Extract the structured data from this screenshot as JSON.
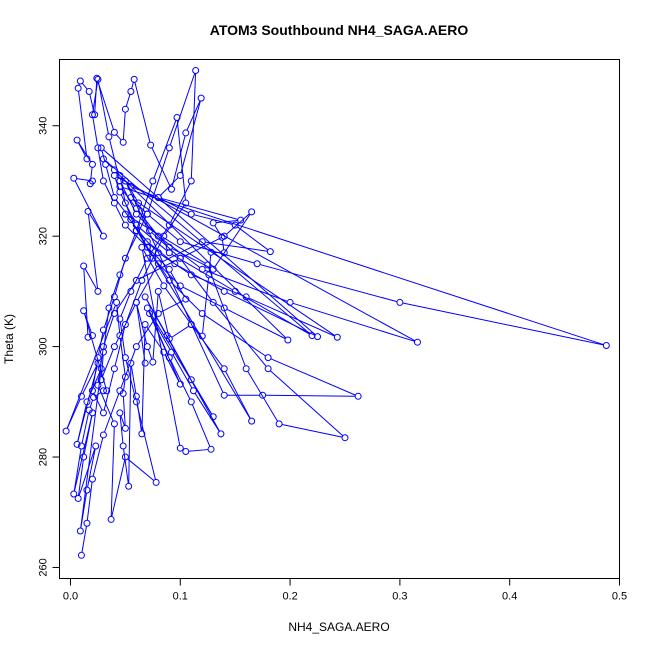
{
  "chart_data": {
    "type": "line",
    "title": "ATOM3 Southbound NH4_SAGA.AERO",
    "xlabel": "NH4_SAGA.AERO",
    "ylabel": "Theta (K)",
    "xlim": [
      -0.01,
      0.5
    ],
    "ylim": [
      258,
      352
    ],
    "xticks": [
      0.0,
      0.1,
      0.2,
      0.3,
      0.4,
      0.5
    ],
    "xtick_labels": [
      "0.0",
      "0.1",
      "0.2",
      "0.3",
      "0.4",
      "0.5"
    ],
    "yticks": [
      260,
      280,
      300,
      320,
      340
    ],
    "ytick_labels": [
      "260",
      "280",
      "300",
      "320",
      "340"
    ],
    "grid": false,
    "legend": "none",
    "color": "#0000ff",
    "markers": "open-circle",
    "series": [
      {
        "points": [
          [
            0.01,
            262.2
          ],
          [
            0.015,
            268.0
          ],
          [
            0.02,
            276.0
          ],
          [
            0.03,
            284.0
          ],
          [
            0.045,
            292.0
          ],
          [
            0.06,
            300.0
          ],
          [
            0.08,
            306.0
          ],
          [
            0.105,
            308.6
          ],
          [
            0.09,
            314.0
          ],
          [
            0.07,
            318.0
          ],
          [
            0.05,
            322.0
          ],
          [
            0.04,
            326.0
          ],
          [
            0.03,
            330.0
          ],
          [
            0.025,
            336.0
          ],
          [
            0.02,
            342.0
          ],
          [
            0.025,
            348.4
          ],
          [
            0.035,
            338.0
          ],
          [
            0.045,
            330.0
          ],
          [
            0.06,
            324.0
          ],
          [
            0.09,
            318.0
          ],
          [
            0.13,
            314.0
          ],
          [
            0.165,
            324.4
          ],
          [
            0.14,
            320.0
          ],
          [
            0.1,
            316.0
          ],
          [
            0.06,
            312.0
          ],
          [
            0.04,
            306.0
          ],
          [
            0.03,
            300.0
          ],
          [
            0.025,
            293.0
          ],
          [
            0.04,
            286.0
          ],
          [
            0.037,
            268.7
          ],
          [
            0.05,
            280.0
          ],
          [
            0.078,
            275.4
          ],
          [
            0.06,
            290.0
          ],
          [
            0.05,
            298.0
          ],
          [
            0.045,
            305.0
          ],
          [
            0.055,
            310.0
          ],
          [
            0.07,
            316.0
          ],
          [
            0.09,
            322.0
          ],
          [
            0.11,
            330.0
          ],
          [
            0.114,
            350.0
          ],
          [
            0.09,
            336.0
          ],
          [
            0.07,
            324.0
          ],
          [
            0.05,
            316.0
          ],
          [
            0.04,
            309.0
          ],
          [
            0.03,
            303.0
          ],
          [
            0.025,
            298.0
          ],
          [
            0.02,
            292.0
          ],
          [
            0.03,
            288.0
          ],
          [
            0.04,
            296.0
          ],
          [
            0.05,
            304.0
          ],
          [
            0.065,
            312.0
          ],
          [
            0.085,
            320.0
          ],
          [
            0.105,
            326.0
          ],
          [
            0.097,
            341.5
          ],
          [
            0.075,
            330.0
          ],
          [
            0.06,
            321.0
          ],
          [
            0.045,
            313.0
          ],
          [
            0.035,
            307.0
          ],
          [
            0.03,
            299.0
          ],
          [
            0.028,
            294.0
          ],
          [
            0.04,
            300.0
          ],
          [
            0.06,
            308.0
          ],
          [
            0.08,
            315.0
          ],
          [
            0.12,
            319.0
          ],
          [
            0.182,
            317.2
          ],
          [
            0.15,
            322.0
          ],
          [
            0.11,
            324.0
          ],
          [
            0.08,
            327.0
          ],
          [
            0.055,
            329.0
          ],
          [
            0.04,
            332.0
          ],
          [
            0.03,
            334.0
          ],
          [
            0.22,
            302.0
          ],
          [
            0.15,
            310.0
          ],
          [
            0.09,
            317.0
          ],
          [
            0.06,
            322.0
          ],
          [
            0.045,
            328.0
          ],
          [
            0.04,
            331.0
          ],
          [
            0.316,
            300.8
          ],
          [
            0.2,
            308.0
          ],
          [
            0.12,
            314.0
          ],
          [
            0.08,
            320.0
          ],
          [
            0.06,
            325.0
          ],
          [
            0.045,
            329.0
          ],
          [
            0.488,
            300.2
          ],
          [
            0.3,
            308.0
          ],
          [
            0.17,
            315.0
          ],
          [
            0.1,
            319.0
          ],
          [
            0.07,
            324.0
          ],
          [
            0.055,
            327.0
          ],
          [
            0.243,
            301.7
          ],
          [
            0.16,
            309.0
          ],
          [
            0.11,
            313.0
          ],
          [
            0.08,
            317.0
          ],
          [
            0.06,
            321.0
          ],
          [
            0.05,
            326.0
          ],
          [
            0.045,
            331.0
          ],
          [
            0.198,
            301.2
          ],
          [
            0.14,
            307.0
          ],
          [
            0.1,
            311.0
          ],
          [
            0.075,
            316.0
          ],
          [
            0.055,
            323.0
          ],
          [
            0.04,
            327.0
          ],
          [
            0.032,
            333.0
          ],
          [
            0.028,
            336.0
          ],
          [
            0.225,
            301.8
          ],
          [
            0.14,
            310.0
          ],
          [
            0.095,
            315.0
          ],
          [
            0.07,
            319.0
          ],
          [
            0.05,
            324.0
          ],
          [
            0.125,
            314.8
          ],
          [
            0.16,
            296.0
          ],
          [
            0.19,
            286.0
          ],
          [
            0.25,
            283.5
          ],
          [
            0.18,
            296.0
          ],
          [
            0.13,
            308.0
          ],
          [
            0.1,
            316.0
          ],
          [
            0.072,
            321.0
          ],
          [
            0.062,
            326.0
          ],
          [
            0.05,
            330.0
          ],
          [
            0.14,
            291.2
          ],
          [
            0.175,
            291.2
          ],
          [
            0.262,
            291.0
          ],
          [
            0.18,
            298.0
          ],
          [
            0.12,
            306.0
          ],
          [
            0.09,
            312.0
          ],
          [
            0.07,
            318.0
          ],
          [
            0.055,
            323.0
          ],
          [
            0.165,
            286.5
          ],
          [
            0.14,
            296.0
          ],
          [
            0.11,
            304.0
          ],
          [
            0.085,
            311.0
          ],
          [
            0.065,
            318.0
          ],
          [
            0.1,
            281.6
          ],
          [
            0.105,
            281.0
          ],
          [
            0.128,
            281.4
          ],
          [
            0.11,
            290.0
          ],
          [
            0.09,
            298.0
          ],
          [
            0.07,
            307.0
          ],
          [
            0.13,
            287.3
          ],
          [
            0.11,
            294.0
          ],
          [
            0.088,
            302.0
          ],
          [
            0.068,
            309.0
          ],
          [
            0.137,
            284.2
          ],
          [
            0.112,
            292.0
          ],
          [
            0.092,
            299.0
          ],
          [
            0.072,
            306.0
          ],
          [
            0.1,
            293.2
          ],
          [
            0.085,
            299.0
          ],
          [
            0.068,
            304.0
          ],
          [
            0.065,
            284.2
          ],
          [
            0.06,
            291.0
          ],
          [
            0.055,
            297.0
          ],
          [
            0.053,
            274.7
          ],
          [
            0.048,
            282.0
          ],
          [
            0.045,
            288.0
          ],
          [
            0.05,
            285.2
          ],
          [
            0.048,
            291.5
          ],
          [
            0.05,
            294.5
          ],
          [
            0.045,
            302.0
          ],
          [
            0.042,
            308.0
          ],
          [
            -0.004,
            284.7
          ],
          [
            0.01,
            291.0
          ],
          [
            0.025,
            297.0
          ],
          [
            0.006,
            282.3
          ],
          [
            0.015,
            290.0
          ],
          [
            0.028,
            296.0
          ],
          [
            0.009,
            266.6
          ],
          [
            0.015,
            274.0
          ],
          [
            0.023,
            282.0
          ],
          [
            0.007,
            272.5
          ],
          [
            0.012,
            280.0
          ],
          [
            0.02,
            288.0
          ],
          [
            0.003,
            273.3
          ],
          [
            0.01,
            282.0
          ],
          [
            0.017,
            288.5
          ],
          [
            0.021,
            290.8
          ],
          [
            0.03,
            292.0
          ],
          [
            0.033,
            292.0
          ],
          [
            0.012,
            306.5
          ],
          [
            0.02,
            302.0
          ],
          [
            0.016,
            301.7
          ],
          [
            0.012,
            314.6
          ],
          [
            0.025,
            310.0
          ],
          [
            0.016,
            324.5
          ],
          [
            0.03,
            320.0
          ],
          [
            0.003,
            330.5
          ],
          [
            0.02,
            330.0
          ],
          [
            0.018,
            329.5
          ],
          [
            0.02,
            333.0
          ],
          [
            0.006,
            337.4
          ],
          [
            0.015,
            334.0
          ],
          [
            0.007,
            346.8
          ],
          [
            0.009,
            348.1
          ],
          [
            0.017,
            346.2
          ],
          [
            0.022,
            342.0
          ],
          [
            0.024,
            348.6
          ],
          [
            0.04,
            338.8
          ],
          [
            0.048,
            337.0
          ],
          [
            0.05,
            343.0
          ],
          [
            0.055,
            346.2
          ],
          [
            0.058,
            348.4
          ],
          [
            0.073,
            336.5
          ],
          [
            0.092,
            328.5
          ],
          [
            0.105,
            338.7
          ],
          [
            0.119,
            345.0
          ],
          [
            0.1,
            331.0
          ],
          [
            0.08,
            327.0
          ],
          [
            0.155,
            322.9
          ],
          [
            0.13,
            322.4
          ],
          [
            0.138,
            319.8
          ],
          [
            0.14,
            317.0
          ],
          [
            0.128,
            317.1
          ],
          [
            0.126,
            313.0
          ],
          [
            0.12,
            301.9
          ],
          [
            0.11,
            304.0
          ],
          [
            0.09,
            301.4
          ],
          [
            0.08,
            310.0
          ],
          [
            0.075,
            297.2
          ],
          [
            0.07,
            300.0
          ],
          [
            0.06,
            308.0
          ],
          [
            0.068,
            297.0
          ]
        ]
      }
    ]
  }
}
